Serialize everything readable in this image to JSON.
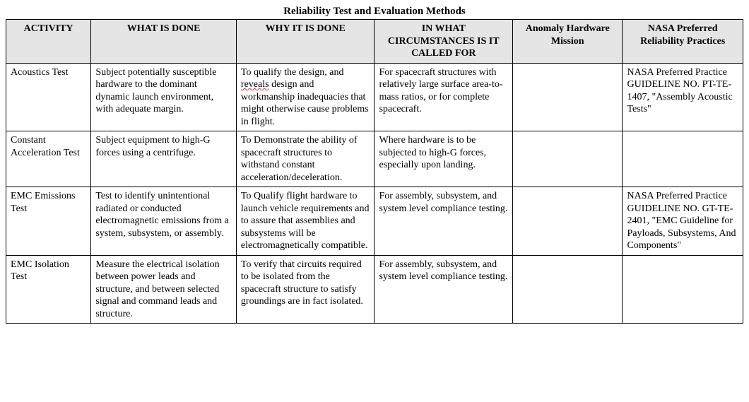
{
  "title": "Reliability Test and Evaluation Methods",
  "columns": [
    "ACTIVITY",
    "WHAT IS DONE",
    "WHY IT IS DONE",
    "IN WHAT CIRCUMSTANCES IS IT CALLED FOR",
    "Anomaly Hardware Mission",
    "NASA Preferred Reliability Practices"
  ],
  "rows": [
    {
      "activity": "Acoustics Test",
      "what": "Subject potentially susceptible hardware to the dominant dynamic launch environment, with adequate margin.",
      "why_pre": "To qualify the design, and ",
      "why_flag": "reveals",
      "why_post": " design and workmanship inadequacies that might otherwise cause problems in flight.",
      "circ": "For spacecraft structures with relatively large surface area-to-mass ratios, or for complete spacecraft.",
      "anomaly": "",
      "nasa": "NASA Preferred Practice GUIDELINE NO. PT-TE-1407, \"Assembly Acoustic Tests\""
    },
    {
      "activity": "Constant Acceleration Test",
      "what": "Subject equipment to high-G forces using a centrifuge.",
      "why_pre": "To Demonstrate the ability of spacecraft structures to withstand constant acceleration/deceleration.",
      "why_flag": "",
      "why_post": "",
      "circ": "Where hardware is to be subjected to high-G forces, especially upon landing.",
      "anomaly": "",
      "nasa": ""
    },
    {
      "activity": "EMC Emissions Test",
      "what": "Test to identify unintentional radiated or conducted electromagnetic emissions from a system, subsystem, or assembly.",
      "why_pre": "To Qualify flight hardware to launch vehicle requirements and to assure that assemblies and subsystems will be electromagnetically compatible.",
      "why_flag": "",
      "why_post": "",
      "circ": "For assembly, subsystem, and system level compliance testing.",
      "anomaly": "",
      "nasa": "NASA Preferred Practice GUIDELINE NO. GT-TE- 2401, \"EMC Guideline for Payloads, Subsystems, And Components\""
    },
    {
      "activity": "EMC Isolation Test",
      "what": "Measure the electrical isolation between power leads and structure, and between selected signal and command leads and structure.",
      "why_pre": "To verify that circuits required to be isolated from the spacecraft structure to satisfy groundings are in fact isolated.",
      "why_flag": "",
      "why_post": "",
      "circ": "For assembly, subsystem, and system level compliance testing.",
      "anomaly": "",
      "nasa": ""
    }
  ]
}
